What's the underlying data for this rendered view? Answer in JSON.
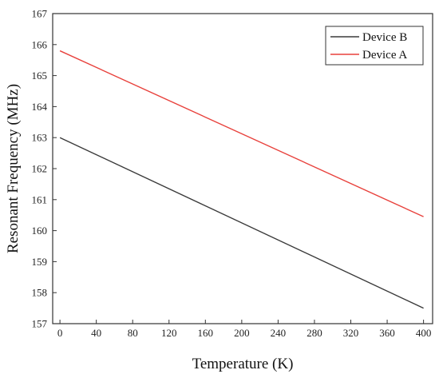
{
  "chart_data": {
    "type": "line",
    "xlabel": "Temperature (K)",
    "ylabel": "Resonant Frequency (MHz)",
    "xlim": [
      -8,
      410
    ],
    "ylim": [
      157,
      167
    ],
    "xticks": [
      0,
      40,
      80,
      120,
      160,
      200,
      240,
      280,
      320,
      360,
      400
    ],
    "yticks": [
      157,
      158,
      159,
      160,
      161,
      162,
      163,
      164,
      165,
      166,
      167
    ],
    "xtick_labels": [
      "0",
      "40",
      "80",
      "120",
      "160",
      "200",
      "240",
      "280",
      "320",
      "360",
      "400"
    ],
    "ytick_labels": [
      "157",
      "158",
      "159",
      "160",
      "161",
      "162",
      "163",
      "164",
      "165",
      "166",
      "167"
    ],
    "grid": false,
    "legend_position": "top-right",
    "series": [
      {
        "name": "Device B",
        "color": "#3a3a3a",
        "x": [
          0,
          400
        ],
        "y": [
          163.0,
          157.5
        ]
      },
      {
        "name": "Device A",
        "color": "#e8413c",
        "x": [
          0,
          400
        ],
        "y": [
          165.8,
          160.45
        ]
      }
    ]
  }
}
